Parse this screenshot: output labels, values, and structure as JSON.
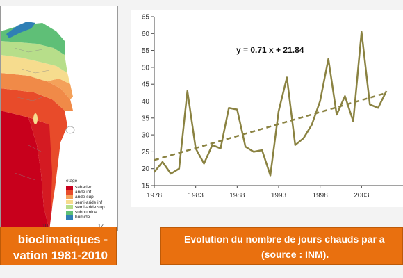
{
  "map": {
    "legend_title": "étage",
    "legend": [
      {
        "label": "saharien",
        "color": "#c8001c"
      },
      {
        "label": "aride inf",
        "color": "#e84b2a"
      },
      {
        "label": "aride sup",
        "color": "#f4a15a"
      },
      {
        "label": "semi-aride inf",
        "color": "#f6dc8e"
      },
      {
        "label": "semi-aride sup",
        "color": "#b7de8a"
      },
      {
        "label": "subhumide",
        "color": "#5fbf77"
      },
      {
        "label": "humide",
        "color": "#2f7fb5"
      }
    ],
    "tick_labels": [
      "10",
      "12"
    ]
  },
  "captions": {
    "left_line1": "bioclimatiques -",
    "left_line2": "vation 1981-2010",
    "right_line1": "Evolution du nombre de jours chauds par a",
    "right_line2": "(source : INM)."
  },
  "chart_data": {
    "type": "line",
    "title": "",
    "xlabel": "",
    "ylabel": "",
    "x": [
      1978,
      1979,
      1980,
      1981,
      1982,
      1983,
      1984,
      1985,
      1986,
      1987,
      1988,
      1989,
      1990,
      1991,
      1992,
      1993,
      1994,
      1995,
      1996,
      1997,
      1998,
      1999,
      2000,
      2001,
      2002,
      2003,
      2004,
      2005,
      2006
    ],
    "series": [
      {
        "values": [
          19,
          22,
          18.5,
          20,
          43,
          26,
          21.5,
          27,
          26,
          38,
          37.5,
          26.5,
          25,
          25.5,
          18,
          37,
          47,
          27,
          29,
          33,
          40,
          52.5,
          36,
          41.5,
          34,
          60.5,
          39,
          38,
          43
        ]
      }
    ],
    "trendline": {
      "slope": 0.71,
      "intercept": 21.84,
      "label": "y = 0.71 x + 21.84",
      "style": "dashed"
    },
    "xlim": [
      1978,
      2008
    ],
    "ylim": [
      15,
      65
    ],
    "x_ticks": [
      "1978",
      "1983",
      "1988",
      "1993",
      "1998",
      "2003"
    ],
    "y_ticks": [
      "15",
      "20",
      "25",
      "30",
      "35",
      "40",
      "45",
      "50",
      "55",
      "60",
      "65"
    ],
    "line_color": "#8a8241",
    "grid": false
  }
}
